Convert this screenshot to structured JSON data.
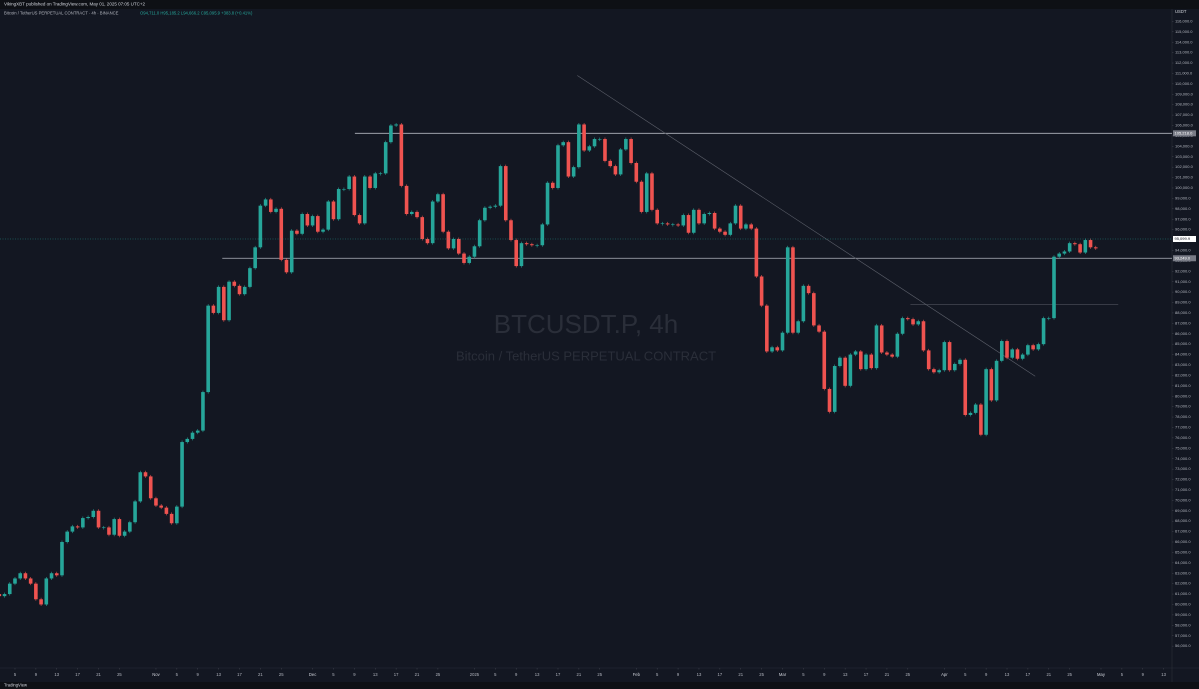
{
  "chart_data": {
    "type": "candlestick",
    "publisher": "VikingXBT published on TradingView.com, May 01, 2025 07:05 UTC+2",
    "title": "Bitcoin / TetherUS PERPETUAL CONTRACT · 4h · BINANCE",
    "ohlc_text": "O94,711.0 H95,185.2 L94,666.2 C95,095.9 +383.8 (+0.41%)",
    "watermark": "BTCUSDT.P, 4h",
    "watermark_subtitle": "Bitcoin / TetherUS PERPETUAL CONTRACT",
    "currency": "USDT",
    "footer": "TradingView",
    "up_color": "#26a69a",
    "down_color": "#ef5350",
    "grid": false,
    "x": [
      0,
      1,
      2,
      3,
      4,
      5,
      6,
      7,
      8,
      9,
      10,
      11,
      12,
      13,
      14,
      15,
      16,
      17,
      18,
      19,
      20,
      21,
      22,
      23,
      24,
      25,
      26,
      27,
      28,
      29,
      30,
      31,
      32,
      33,
      34,
      35,
      36,
      37,
      38,
      39,
      40,
      41,
      42,
      43,
      44,
      45,
      46,
      47,
      48,
      49,
      50,
      51,
      52,
      53,
      54,
      55,
      56,
      57,
      58,
      59,
      60,
      61,
      62,
      63,
      64,
      65,
      66,
      67,
      68,
      69,
      70,
      71,
      72,
      73,
      74,
      75,
      76,
      77,
      78,
      79,
      80,
      81,
      82,
      83,
      84,
      85,
      86,
      87,
      88,
      89,
      90,
      91,
      92,
      93,
      94,
      95,
      96,
      97,
      98,
      99,
      100,
      101,
      102,
      103,
      104,
      105,
      106,
      107,
      108,
      109,
      110,
      111,
      112,
      113,
      114,
      115,
      116,
      117,
      118,
      119,
      120,
      121,
      122,
      123,
      124,
      125,
      126,
      127,
      128,
      129,
      130,
      131,
      132,
      133,
      134,
      135,
      136,
      137,
      138,
      139,
      140,
      141,
      142,
      143,
      144,
      145,
      146,
      147,
      148,
      149,
      150,
      151,
      152,
      153,
      154,
      155,
      156,
      157,
      158,
      159,
      160,
      161,
      162,
      163,
      164,
      165,
      166,
      167,
      168,
      169,
      170,
      171,
      172,
      173,
      174,
      175,
      176,
      177,
      178,
      179,
      180,
      181,
      182,
      183,
      184,
      185,
      186,
      187,
      188,
      189,
      190,
      191,
      192,
      193,
      194,
      195,
      196,
      197,
      198,
      199,
      200,
      201,
      202,
      203,
      204,
      205,
      206,
      207,
      208,
      209,
      210,
      211
    ],
    "values": [
      61000,
      60800,
      61000,
      62000,
      62500,
      63000,
      62500,
      62000,
      60500,
      60000,
      62500,
      63000,
      62800,
      66000,
      67000,
      67500,
      67400,
      68300,
      68400,
      69000,
      67400,
      67400,
      66700,
      68200,
      66600,
      67000,
      67900,
      69900,
      72700,
      72300,
      70200,
      69500,
      69300,
      68700,
      67800,
      69400,
      75600,
      75900,
      76500,
      76700,
      80400,
      88700,
      88000,
      90500,
      87300,
      91000,
      90600,
      89800,
      90500,
      92300,
      94300,
      98300,
      98900,
      97700,
      98000,
      93100,
      91900,
      95900,
      95600,
      97500,
      96400,
      97300,
      95800,
      96000,
      98700,
      97000,
      99900,
      99900,
      101100,
      97400,
      96600,
      101100,
      100000,
      101400,
      101400,
      104400,
      106000,
      106100,
      100200,
      97500,
      97700,
      97200,
      95100,
      94700,
      98700,
      99400,
      95800,
      94200,
      95100,
      93700,
      92800,
      93400,
      94400,
      96900,
      98100,
      98200,
      98300,
      102100,
      96900,
      95000,
      92500,
      94700,
      94600,
      94500,
      94500,
      96500,
      100500,
      100000,
      104100,
      104400,
      101100,
      102000,
      106100,
      103600,
      104000,
      104700,
      104700,
      102600,
      102100,
      101300,
      103700,
      104700,
      102400,
      100600,
      97700,
      101400,
      97900,
      96600,
      96600,
      96500,
      96500,
      96400,
      97400,
      95700,
      97900,
      96600,
      97500,
      97600,
      96100,
      95800,
      95500,
      96600,
      98300,
      96100,
      96500,
      96100,
      91500,
      88700,
      84300,
      84700,
      84400,
      86100,
      94300,
      86100,
      87200,
      90600,
      89900,
      86800,
      86200,
      80700,
      78500,
      82900,
      83700,
      81000,
      84000,
      84300,
      82600,
      84000,
      82700,
      86800,
      84200,
      84000,
      83800,
      86000,
      87500,
      87400,
      86900,
      87200,
      84400,
      82600,
      82300,
      82500,
      85200,
      82500,
      83100,
      83500,
      78200,
      78400,
      79200,
      76300,
      82600,
      79600,
      83400,
      85300,
      83700,
      84500,
      83600,
      84000,
      84900,
      84500,
      85000,
      87500,
      87500,
      93400,
      93700,
      93900,
      94700,
      94600,
      93800,
      95000,
      94300,
      94200
    ],
    "last_price": {
      "value": 95100,
      "label": "95,099.9"
    },
    "lines": [
      {
        "y": 105250,
        "x": [
          69.1,
          225.6
        ],
        "label": "105,218.0"
      },
      {
        "y": 93250,
        "x": [
          43.7,
          225.6
        ],
        "label": "93,249.0"
      },
      {
        "y": 88800,
        "x": [
          175.5,
          215.3
        ]
      }
    ],
    "trendline": {
      "x": [
        111.7,
        199.4
      ],
      "y": [
        110800,
        81920
      ]
    },
    "xlim": [
      1.13,
      225.6
    ],
    "ylim": [
      53900,
      116900
    ],
    "xticks": [
      {
        "value": 4,
        "label": "5"
      },
      {
        "value": 8,
        "label": "9"
      },
      {
        "value": 12,
        "label": "13"
      },
      {
        "value": 16,
        "label": "17"
      },
      {
        "value": 20,
        "label": "21"
      },
      {
        "value": 24,
        "label": "25"
      },
      {
        "value": 31,
        "label": "Nov"
      },
      {
        "value": 35,
        "label": "5"
      },
      {
        "value": 39,
        "label": "9"
      },
      {
        "value": 43,
        "label": "13"
      },
      {
        "value": 47,
        "label": "17"
      },
      {
        "value": 51,
        "label": "21"
      },
      {
        "value": 55,
        "label": "25"
      },
      {
        "value": 61,
        "label": "Dec"
      },
      {
        "value": 65,
        "label": "5"
      },
      {
        "value": 69,
        "label": "9"
      },
      {
        "value": 73,
        "label": "13"
      },
      {
        "value": 77,
        "label": "17"
      },
      {
        "value": 81,
        "label": "21"
      },
      {
        "value": 85,
        "label": "25"
      },
      {
        "value": 92,
        "label": "2025"
      },
      {
        "value": 96,
        "label": "5"
      },
      {
        "value": 100,
        "label": "9"
      },
      {
        "value": 104,
        "label": "13"
      },
      {
        "value": 108,
        "label": "17"
      },
      {
        "value": 112,
        "label": "21"
      },
      {
        "value": 116,
        "label": "25"
      },
      {
        "value": 123,
        "label": "Feb"
      },
      {
        "value": 127,
        "label": "5"
      },
      {
        "value": 131,
        "label": "9"
      },
      {
        "value": 135,
        "label": "13"
      },
      {
        "value": 139,
        "label": "17"
      },
      {
        "value": 143,
        "label": "21"
      },
      {
        "value": 147,
        "label": "25"
      },
      {
        "value": 151,
        "label": "Mar"
      },
      {
        "value": 155,
        "label": "5"
      },
      {
        "value": 159,
        "label": "9"
      },
      {
        "value": 163,
        "label": "13"
      },
      {
        "value": 167,
        "label": "17"
      },
      {
        "value": 171,
        "label": "21"
      },
      {
        "value": 175,
        "label": "25"
      },
      {
        "value": 182,
        "label": "Apr"
      },
      {
        "value": 186,
        "label": "5"
      },
      {
        "value": 190,
        "label": "9"
      },
      {
        "value": 194,
        "label": "13"
      },
      {
        "value": 198,
        "label": "17"
      },
      {
        "value": 202,
        "label": "21"
      },
      {
        "value": 206,
        "label": "25"
      },
      {
        "value": 212,
        "label": "May"
      },
      {
        "value": 216,
        "label": "5"
      },
      {
        "value": 220,
        "label": "9"
      },
      {
        "value": 224,
        "label": "13"
      }
    ],
    "yticks": [
      {
        "value": 56000,
        "label": "56,000.0"
      },
      {
        "value": 57000,
        "label": "57,000.0"
      },
      {
        "value": 58000,
        "label": "58,000.0"
      },
      {
        "value": 59000,
        "label": "59,000.0"
      },
      {
        "value": 60000,
        "label": "60,000.0"
      },
      {
        "value": 61000,
        "label": "61,000.0"
      },
      {
        "value": 62000,
        "label": "62,000.0"
      },
      {
        "value": 63000,
        "label": "63,000.0"
      },
      {
        "value": 64000,
        "label": "64,000.0"
      },
      {
        "value": 65000,
        "label": "65,000.0"
      },
      {
        "value": 66000,
        "label": "66,000.0"
      },
      {
        "value": 67000,
        "label": "67,000.0"
      },
      {
        "value": 68000,
        "label": "68,000.0"
      },
      {
        "value": 69000,
        "label": "69,000.0"
      },
      {
        "value": 70000,
        "label": "70,000.0"
      },
      {
        "value": 71000,
        "label": "71,000.0"
      },
      {
        "value": 72000,
        "label": "72,000.0"
      },
      {
        "value": 73000,
        "label": "73,000.0"
      },
      {
        "value": 74000,
        "label": "74,000.0"
      },
      {
        "value": 75000,
        "label": "75,000.0"
      },
      {
        "value": 76000,
        "label": "76,000.0"
      },
      {
        "value": 77000,
        "label": "77,000.0"
      },
      {
        "value": 78000,
        "label": "78,000.0"
      },
      {
        "value": 79000,
        "label": "79,000.0"
      },
      {
        "value": 80000,
        "label": "80,000.0"
      },
      {
        "value": 81000,
        "label": "81,000.0"
      },
      {
        "value": 82000,
        "label": "82,000.0"
      },
      {
        "value": 83000,
        "label": "83,000.0"
      },
      {
        "value": 84000,
        "label": "84,000.0"
      },
      {
        "value": 85000,
        "label": "85,000.0"
      },
      {
        "value": 86000,
        "label": "86,000.0"
      },
      {
        "value": 87000,
        "label": "87,000.0"
      },
      {
        "value": 88000,
        "label": "88,000.0"
      },
      {
        "value": 89000,
        "label": "89,000.0"
      },
      {
        "value": 90000,
        "label": "90,000.0"
      },
      {
        "value": 91000,
        "label": "91,000.0"
      },
      {
        "value": 92000,
        "label": "92,000.0"
      },
      {
        "value": 93000,
        "label": "93,000.0"
      },
      {
        "value": 94000,
        "label": "94,000.0"
      },
      {
        "value": 95000,
        "label": "95,000.0"
      },
      {
        "value": 96000,
        "label": "96,000.0"
      },
      {
        "value": 97000,
        "label": "97,000.0"
      },
      {
        "value": 98000,
        "label": "98,000.0"
      },
      {
        "value": 99000,
        "label": "99,000.0"
      },
      {
        "value": 100000,
        "label": "100,000.0"
      },
      {
        "value": 101000,
        "label": "101,000.0"
      },
      {
        "value": 102000,
        "label": "102,000.0"
      },
      {
        "value": 103000,
        "label": "103,000.0"
      },
      {
        "value": 104000,
        "label": "104,000.0"
      },
      {
        "value": 105000,
        "label": "105,000.0"
      },
      {
        "value": 106000,
        "label": "106,000.0"
      },
      {
        "value": 107000,
        "label": "107,000.0"
      },
      {
        "value": 108000,
        "label": "108,000.0"
      },
      {
        "value": 109000,
        "label": "109,000.0"
      },
      {
        "value": 110000,
        "label": "110,000.0"
      },
      {
        "value": 111000,
        "label": "111,000.0"
      },
      {
        "value": 112000,
        "label": "112,000.0"
      },
      {
        "value": 113000,
        "label": "113,000.0"
      },
      {
        "value": 114000,
        "label": "114,000.0"
      },
      {
        "value": 115000,
        "label": "115,000.0"
      },
      {
        "value": 116000,
        "label": "116,000.0"
      }
    ]
  }
}
